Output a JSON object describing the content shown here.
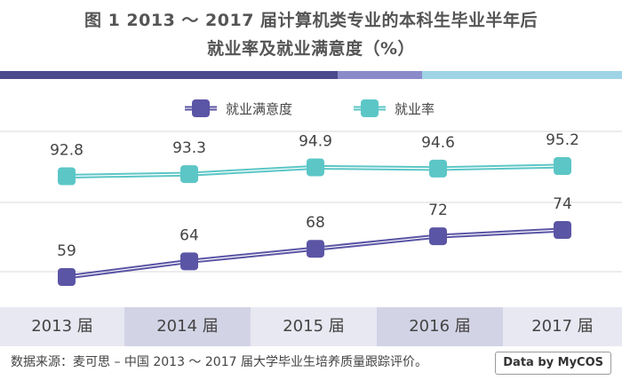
{
  "title": {
    "line1": "图 1  2013 ～ 2017 届计算机类专业的本科生毕业半年后",
    "line2": "就业率及就业满意度（%）"
  },
  "colors": {
    "satisfaction": "#5b55a5",
    "employment": "#5cc6c6",
    "strip_dark": "#4b4a8c",
    "strip_mid": "#8b8bc9",
    "strip_light": "#9fd3e6",
    "xband_light": "#e8e8f2",
    "xband_dark": "#d3d3e6",
    "grid": "#d8d8d8"
  },
  "source": "数据来源：麦可思 – 中国 2013 ～ 2017 届大学毕业生培养质量跟踪评价。",
  "logo": "Data by MyCOS",
  "chart_data": {
    "type": "line",
    "categories": [
      "2013 届",
      "2014 届",
      "2015 届",
      "2016 届",
      "2017 届"
    ],
    "series": [
      {
        "name": "就业满意度",
        "values": [
          59,
          64,
          68,
          72,
          74
        ],
        "color": "#5b55a5"
      },
      {
        "name": "就业率",
        "values": [
          92.8,
          93.3,
          94.9,
          94.6,
          95.2
        ],
        "color": "#5cc6c6"
      }
    ],
    "legend": "top-center",
    "grid": true
  }
}
